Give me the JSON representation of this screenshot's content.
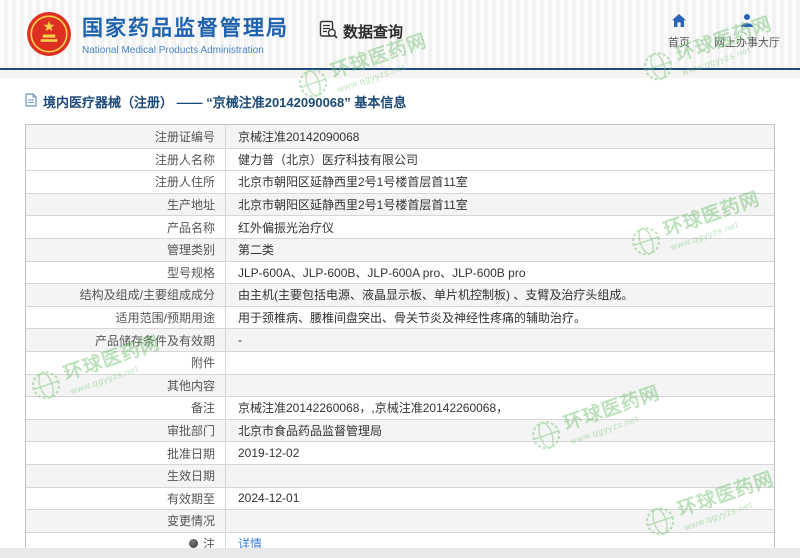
{
  "header": {
    "agency_cn": "国家药品监督管理局",
    "agency_en": "National Medical Products Administration",
    "section_label": "数据查询",
    "nav": [
      {
        "label": "首页",
        "icon": "home-icon"
      },
      {
        "label": "网上办事大厅",
        "icon": "person-icon"
      }
    ]
  },
  "page_title": "境内医疗器械（注册） —— “京械注准20142090068” 基本信息",
  "table": {
    "rows": [
      {
        "label": "注册证编号",
        "value": "京械注准20142090068",
        "shaded": true
      },
      {
        "label": "注册人名称",
        "value": "健力普（北京）医疗科技有限公司",
        "shaded": false
      },
      {
        "label": "注册人住所",
        "value": "北京市朝阳区延静西里2号1号楼首层首11室",
        "shaded": false
      },
      {
        "label": "生产地址",
        "value": "北京市朝阳区延静西里2号1号楼首层首11室",
        "shaded": true
      },
      {
        "label": "产品名称",
        "value": "红外偏振光治疗仪",
        "shaded": false
      },
      {
        "label": "管理类别",
        "value": "第二类",
        "shaded": true
      },
      {
        "label": "型号规格",
        "value": "JLP-600A、JLP-600B、JLP-600A pro、JLP-600B pro",
        "shaded": false
      },
      {
        "label": "结构及组成/主要组成成分",
        "value": "由主机(主要包括电源、液晶显示板、单片机控制板) 、支臂及治疗头组成。",
        "shaded": true
      },
      {
        "label": "适用范围/预期用途",
        "value": "用于颈椎病、腰椎间盘突出、骨关节炎及神经性疼痛的辅助治疗。",
        "shaded": false
      },
      {
        "label": "产品储存条件及有效期",
        "value": "-",
        "shaded": true
      },
      {
        "label": "附件",
        "value": "",
        "shaded": false
      },
      {
        "label": "其他内容",
        "value": "",
        "shaded": true
      },
      {
        "label": "备注",
        "value": "京械注准20142260068，,京械注准20142260068，",
        "shaded": false
      },
      {
        "label": "审批部门",
        "value": "北京市食品药品监督管理局",
        "shaded": true
      },
      {
        "label": "批准日期",
        "value": "2019-12-02",
        "shaded": false
      },
      {
        "label": "生效日期",
        "value": "",
        "shaded": true
      },
      {
        "label": "有效期至",
        "value": "2024-12-01",
        "shaded": false
      },
      {
        "label": "变更情况",
        "value": "",
        "shaded": true
      },
      {
        "label": "注",
        "value": "详情",
        "shaded": false,
        "note_icon": true,
        "link": true
      }
    ]
  },
  "watermark": {
    "name": "环球医药网",
    "url": "www.qgyyzs.net"
  },
  "colors": {
    "brand_blue": "#1e62ae",
    "divider_blue": "#1b4c7e",
    "link_blue": "#3e80d8",
    "watermark_green": "#6fbf6f",
    "shaded_row": "#f4f4f4"
  }
}
